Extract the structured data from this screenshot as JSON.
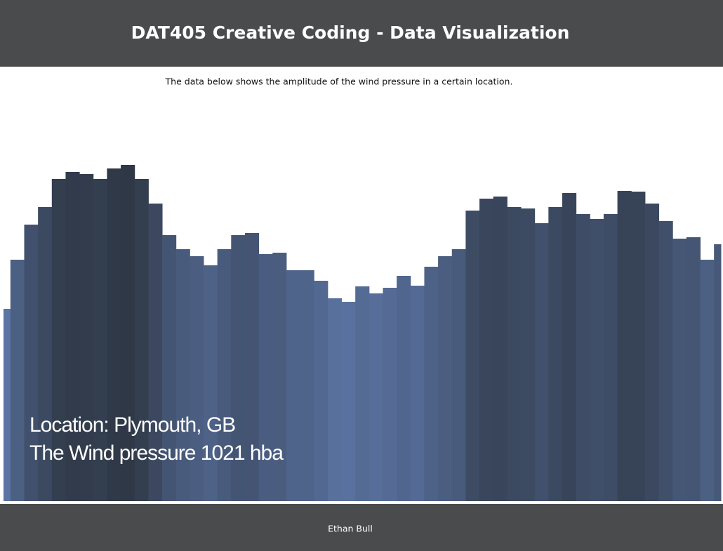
{
  "header": {
    "title": "DAT405 Creative Coding - Data Visualization"
  },
  "description": "The data below shows the amplitude of the wind pressure in a certain location.",
  "chart_data": {
    "type": "area",
    "values": [
      274,
      344,
      394,
      419,
      459,
      469,
      466,
      459,
      474,
      479,
      459,
      424,
      379,
      359,
      349,
      336,
      359,
      379,
      382,
      352,
      354,
      329,
      329,
      314,
      289,
      284,
      306,
      296,
      304,
      321,
      307,
      334,
      349,
      359,
      414,
      431,
      434,
      419,
      417,
      396,
      419,
      439,
      409,
      402,
      409,
      442,
      441,
      424,
      399,
      374,
      376,
      344,
      366
    ],
    "ylim": [
      0,
      500
    ],
    "color_low": "#5b74a3",
    "color_high": "#2f3846"
  },
  "overlay": {
    "location": "Location: Plymouth, GB",
    "pressure": "The Wind pressure 1021 hba"
  },
  "footer": {
    "author": "Ethan Bull"
  }
}
